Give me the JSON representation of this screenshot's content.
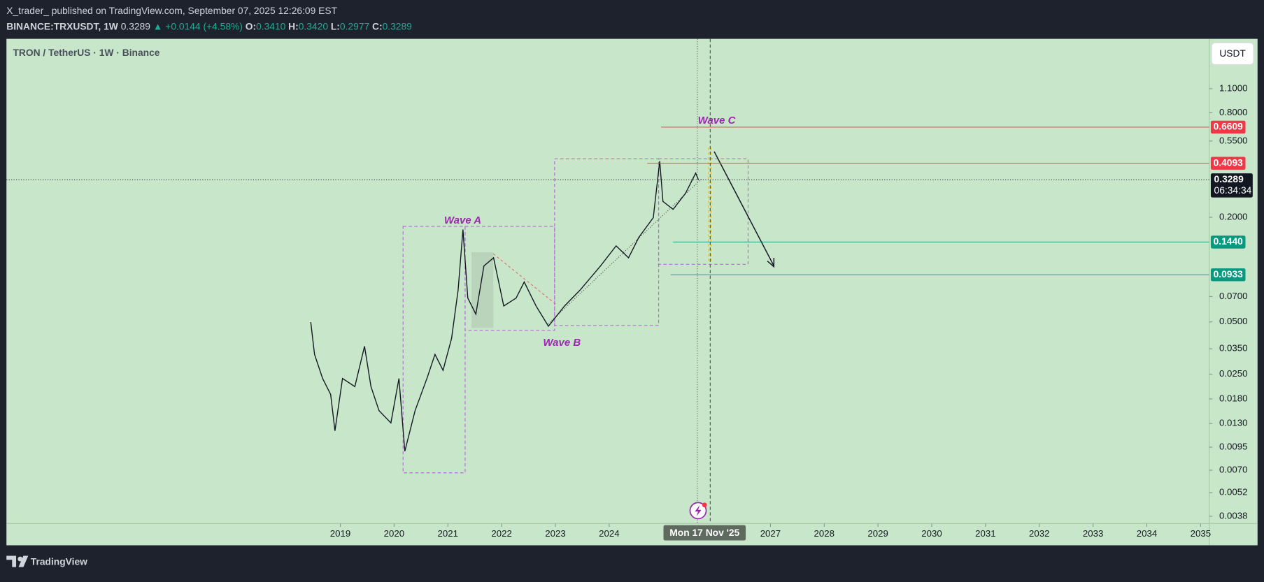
{
  "header": {
    "byline": "X_trader_ published on TradingView.com, September 07, 2025 12:26:09 EST",
    "symbol": "BINANCE:TRXUSDT, 1W",
    "price": "0.3289",
    "change": "+0.0144 (+4.58%)",
    "o_label": "O:",
    "o": "0.3410",
    "h_label": "H:",
    "h": "0.3420",
    "l_label": "L:",
    "l": "0.2977",
    "c_label": "C:",
    "c": "0.3289"
  },
  "chart_data": {
    "type": "line",
    "title": "TRON / TetherUS · 1W · Binance",
    "unit_button": "USDT",
    "log_scale": true,
    "color": "#131722",
    "x": [
      2018.45,
      2018.52,
      2018.67,
      2018.82,
      2018.9,
      2019.04,
      2019.27,
      2019.45,
      2019.57,
      2019.72,
      2019.94,
      2020.09,
      2020.2,
      2020.39,
      2020.61,
      2020.76,
      2020.91,
      2021.07,
      2021.19,
      2021.28,
      2021.37,
      2021.52,
      2021.67,
      2021.85,
      2022.04,
      2022.27,
      2022.42,
      2022.64,
      2022.87,
      2023.17,
      2023.46,
      2023.84,
      2024.13,
      2024.36,
      2024.55,
      2024.82,
      2024.94,
      2025.0,
      2025.19,
      2025.42,
      2025.61,
      2025.66
    ],
    "values": [
      0.0498,
      0.0325,
      0.0236,
      0.0191,
      0.0118,
      0.0236,
      0.0212,
      0.0362,
      0.0212,
      0.0154,
      0.0131,
      0.0236,
      0.009,
      0.0154,
      0.0236,
      0.0325,
      0.0263,
      0.0402,
      0.0763,
      0.17,
      0.0686,
      0.0554,
      0.105,
      0.117,
      0.0617,
      0.0686,
      0.0849,
      0.0617,
      0.0472,
      0.0617,
      0.0763,
      0.105,
      0.137,
      0.117,
      0.153,
      0.199,
      0.421,
      0.247,
      0.222,
      0.275,
      0.359,
      0.3289
    ],
    "xlim": [
      2012.79,
      2035.16
    ],
    "ylim": [
      0.00345,
      2.13
    ],
    "xticks": [
      2019,
      2020,
      2021,
      2022,
      2023,
      2024,
      2027,
      2028,
      2029,
      2030,
      2031,
      2032,
      2033,
      2034,
      2035
    ],
    "yticks": [
      {
        "value": 1.1,
        "label": "1.1000"
      },
      {
        "value": 0.8,
        "label": "0.8000"
      },
      {
        "value": 0.55,
        "label": "0.5500"
      },
      {
        "value": 0.2,
        "label": "0.2000"
      },
      {
        "value": 0.07,
        "label": "0.0700"
      },
      {
        "value": 0.05,
        "label": "0.0500"
      },
      {
        "value": 0.035,
        "label": "0.0350"
      },
      {
        "value": 0.025,
        "label": "0.0250"
      },
      {
        "value": 0.018,
        "label": "0.0180"
      },
      {
        "value": 0.013,
        "label": "0.0130"
      },
      {
        "value": 0.0095,
        "label": "0.0095"
      },
      {
        "value": 0.007,
        "label": "0.0070"
      },
      {
        "value": 0.0052,
        "label": "0.0052"
      },
      {
        "value": 0.0038,
        "label": "0.0038"
      }
    ],
    "levels": [
      {
        "value": 0.6609,
        "label": "0.6609",
        "color": "#f23645"
      },
      {
        "value": 0.4093,
        "label": "0.4093",
        "color": "#f23645"
      },
      {
        "value": 0.144,
        "label": "0.1440",
        "color": "#089981"
      },
      {
        "value": 0.0933,
        "label": "0.0933",
        "color": "#089981"
      }
    ],
    "last": {
      "value": 0.3289,
      "label": "0.3289",
      "countdown": "06:34:34"
    },
    "crosshair": {
      "x": 2025.88,
      "label": "Mon 17 Nov '25"
    },
    "annotations": [
      "Wave A",
      "Wave B",
      "Wave C"
    ]
  },
  "footer": {
    "brand": "TradingView"
  }
}
